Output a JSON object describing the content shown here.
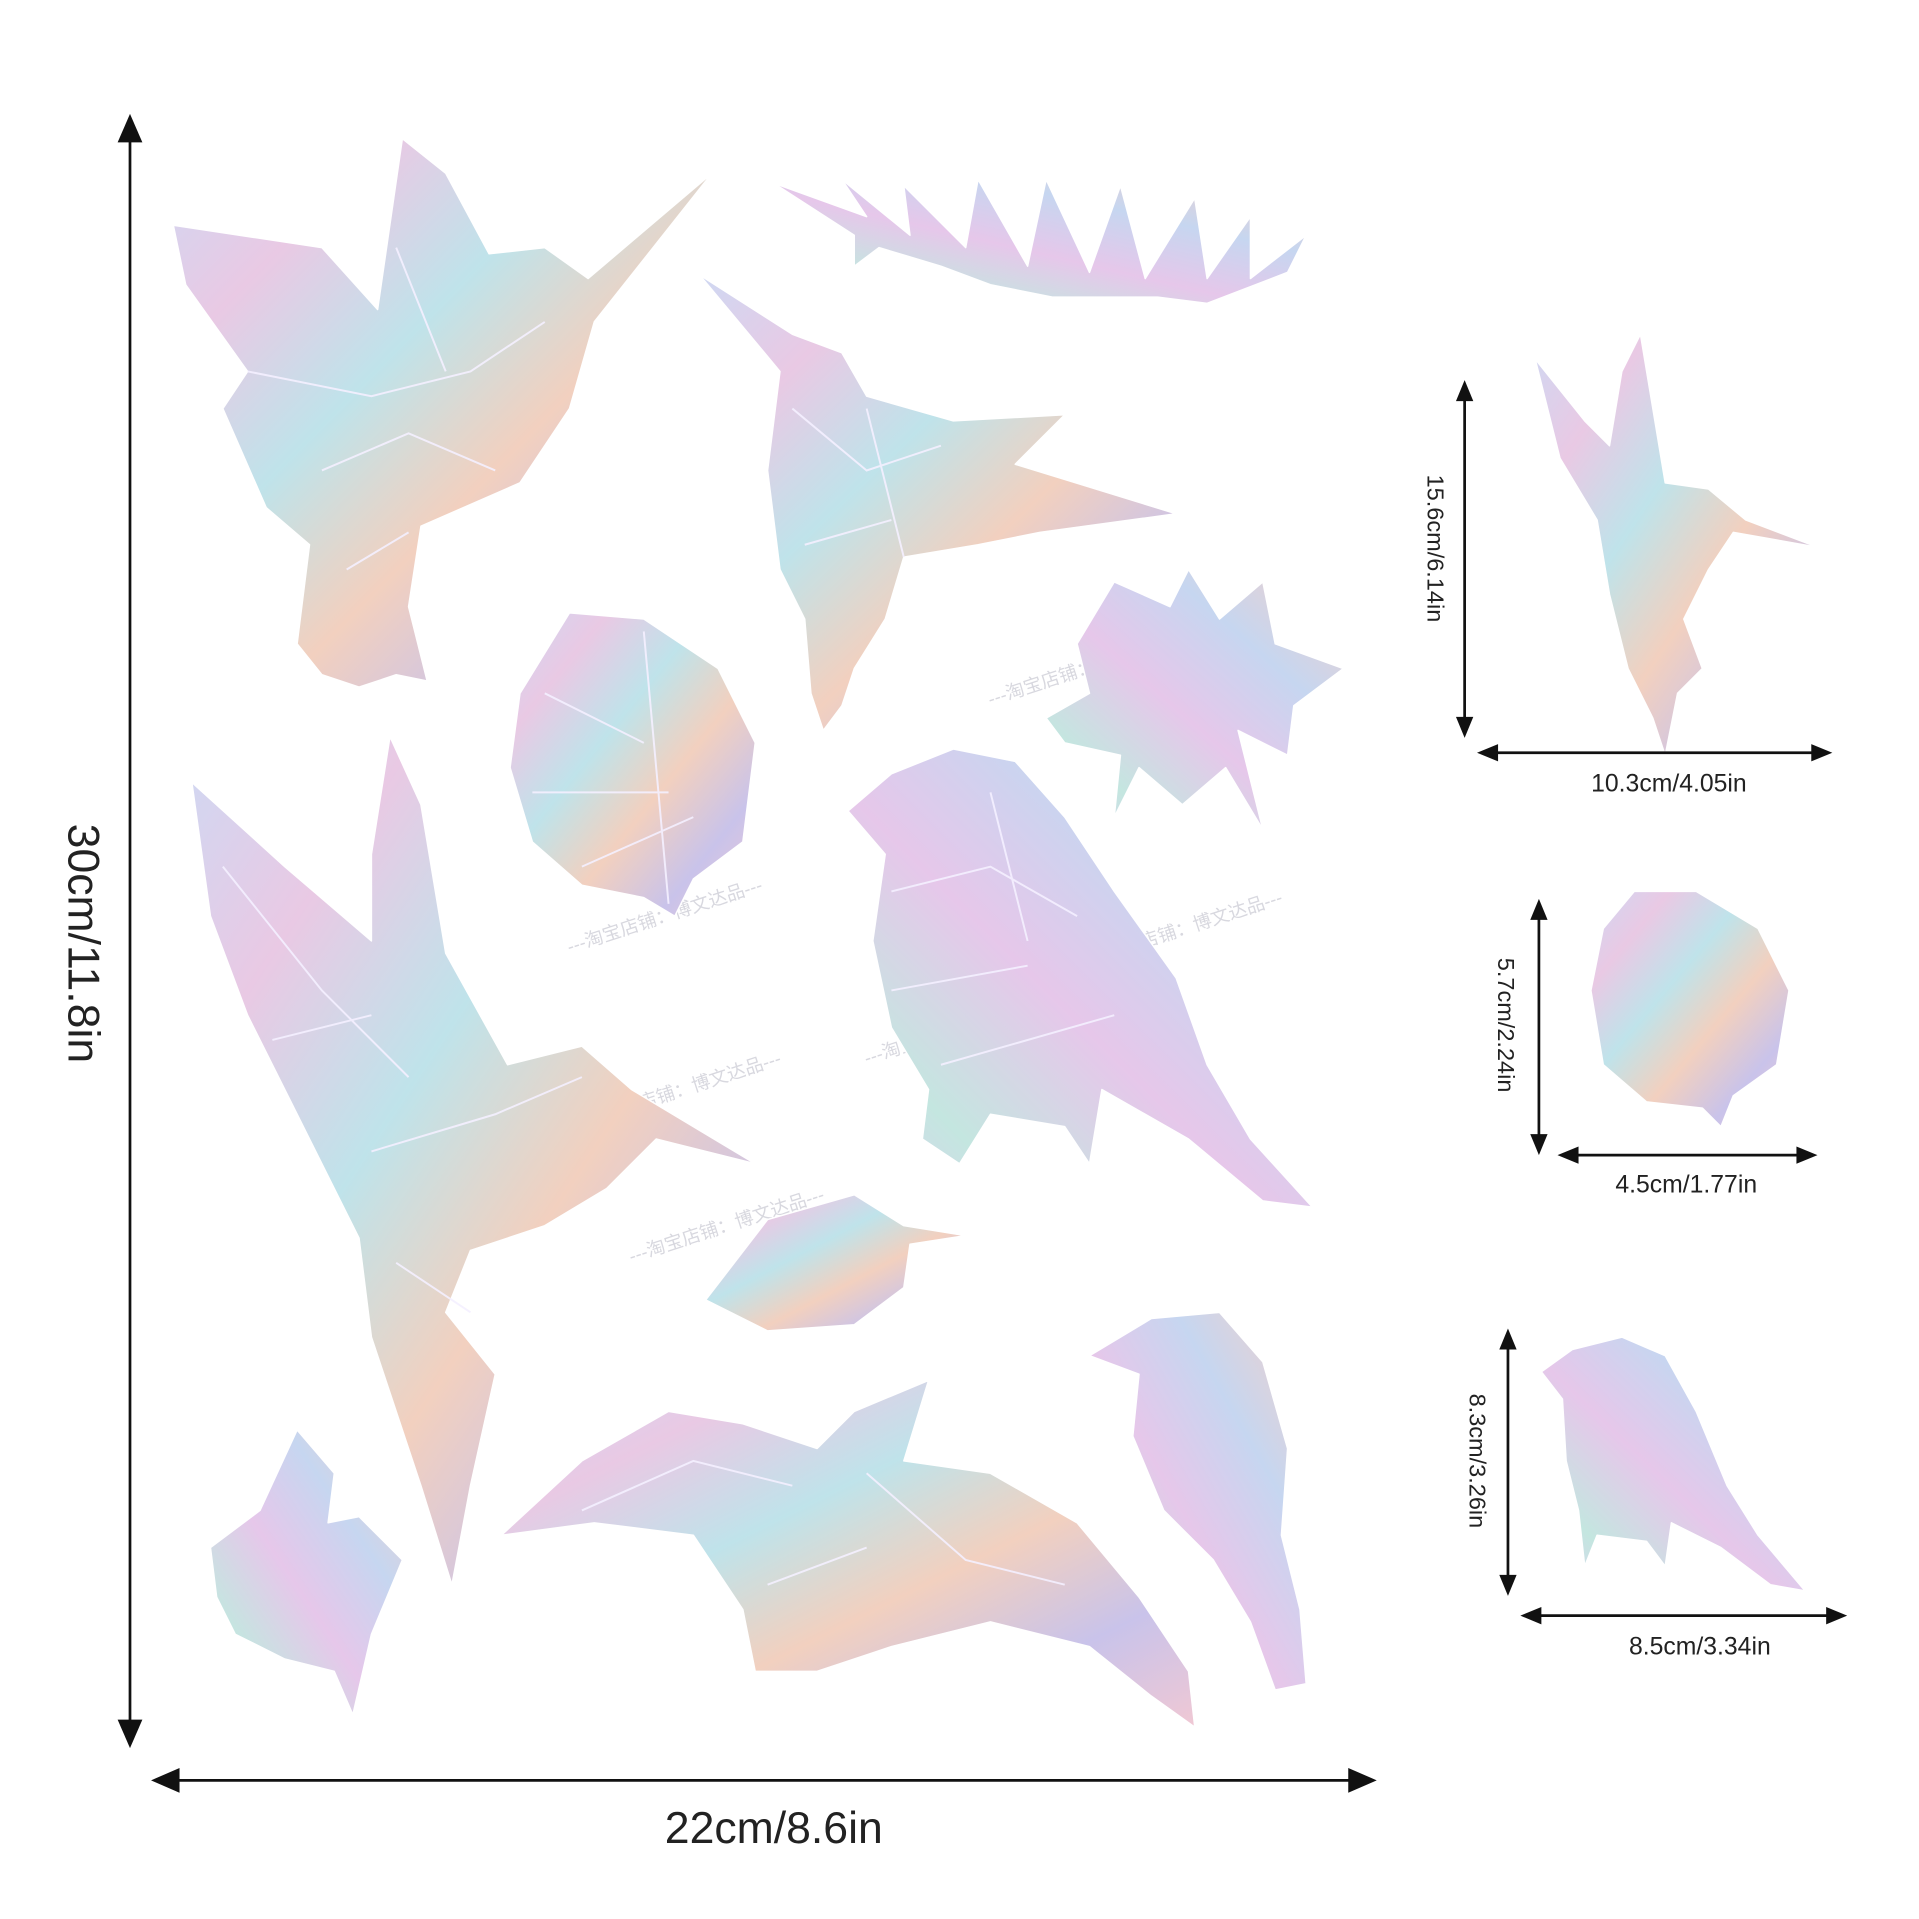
{
  "main": {
    "height": "30cm/11.8in",
    "width": "22cm/8.6in"
  },
  "details": [
    {
      "height": "15.6cm/6.14in",
      "width": "10.3cm/4.05in"
    },
    {
      "height": "5.7cm/2.24in",
      "width": "4.5cm/1.77in"
    },
    {
      "height": "8.3cm/3.26in",
      "width": "8.5cm/3.34in"
    }
  ],
  "watermark": "---淘宝店铺：博文达品---"
}
